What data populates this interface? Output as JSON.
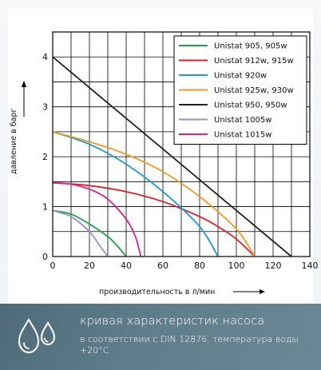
{
  "chart_data": {
    "type": "line",
    "title": "",
    "xlabel": "производительность в л/мин",
    "ylabel": "давление в барг",
    "xlim": [
      0,
      140
    ],
    "ylim": [
      0,
      4.5
    ],
    "xticks": [
      0,
      20,
      40,
      60,
      80,
      100,
      120,
      140
    ],
    "yticks": [
      0,
      1,
      2,
      3,
      4
    ],
    "grid": true,
    "legend_position": "top-right",
    "series": [
      {
        "name": "Unistat 905, 905w",
        "color": "#1aa64a",
        "x": [
          0,
          10,
          20,
          30,
          35,
          40
        ],
        "y": [
          0.92,
          0.85,
          0.65,
          0.4,
          0.22,
          0
        ]
      },
      {
        "name": "Unistat 912w, 915w",
        "color": "#e0202a",
        "x": [
          0,
          20,
          40,
          60,
          80,
          90,
          100,
          110
        ],
        "y": [
          1.48,
          1.42,
          1.3,
          1.1,
          0.8,
          0.6,
          0.35,
          0
        ]
      },
      {
        "name": "Unistat 920w",
        "color": "#1a9ad6",
        "x": [
          0,
          20,
          40,
          60,
          80,
          90
        ],
        "y": [
          2.5,
          2.25,
          1.85,
          1.3,
          0.6,
          0
        ]
      },
      {
        "name": "Unistat 925w, 930w",
        "color": "#f39a1e",
        "x": [
          0,
          20,
          40,
          60,
          80,
          100,
          110
        ],
        "y": [
          2.5,
          2.3,
          2.05,
          1.7,
          1.2,
          0.55,
          0
        ]
      },
      {
        "name": "Unistat 950, 950w",
        "color": "#222222",
        "x": [
          0,
          130
        ],
        "y": [
          4.0,
          0
        ]
      },
      {
        "name": "Unistat 1005w",
        "color": "#9b8fc8",
        "x": [
          0,
          10,
          20,
          25,
          30
        ],
        "y": [
          0.92,
          0.8,
          0.5,
          0.25,
          0
        ]
      },
      {
        "name": "Unistat 1015w",
        "color": "#e0208a",
        "x": [
          0,
          10,
          20,
          30,
          40,
          45,
          48
        ],
        "y": [
          1.48,
          1.45,
          1.35,
          1.15,
          0.75,
          0.4,
          0
        ]
      }
    ]
  },
  "caption": {
    "title": "кривая характеристик насоса",
    "subtitle": "в соответствии с DIN 12876, температура воды +20°C"
  },
  "icon": {
    "name": "water-drops-icon"
  }
}
